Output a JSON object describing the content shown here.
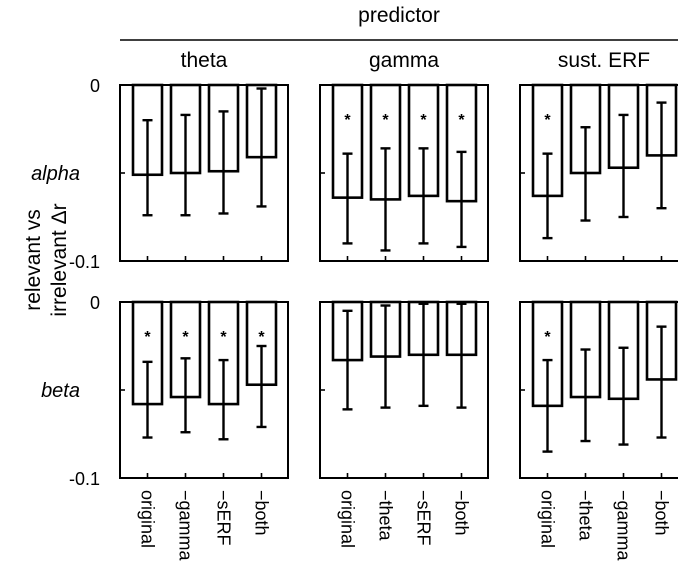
{
  "chart_data": {
    "type": "bar",
    "header": "predictor",
    "ylabel": [
      "relevant vs",
      "irrelevant Δr"
    ],
    "ylim": [
      -0.1,
      0
    ],
    "yticks": [
      {
        "value": 0,
        "label": "0"
      },
      {
        "value": -0.1,
        "label": "-0.1"
      }
    ],
    "significance_marker": "*",
    "rows": [
      {
        "label": "alpha"
      },
      {
        "label": "beta"
      }
    ],
    "columns": [
      {
        "predictor": "theta",
        "categories": [
          "original",
          "−gamma",
          "−sERF",
          "−both"
        ],
        "series": {
          "alpha": {
            "values": [
              -0.051,
              -0.05,
              -0.049,
              -0.041
            ],
            "err_low": [
              -0.074,
              -0.074,
              -0.073,
              -0.069
            ],
            "err_high": [
              -0.02,
              -0.017,
              -0.015,
              -0.002
            ],
            "significant": [
              false,
              false,
              false,
              false
            ]
          },
          "beta": {
            "values": [
              -0.058,
              -0.054,
              -0.058,
              -0.047
            ],
            "err_low": [
              -0.077,
              -0.074,
              -0.078,
              -0.071
            ],
            "err_high": [
              -0.034,
              -0.032,
              -0.033,
              -0.025
            ],
            "significant": [
              true,
              true,
              true,
              true
            ]
          }
        }
      },
      {
        "predictor": "gamma",
        "categories": [
          "original",
          "−theta",
          "−sERF",
          "−both"
        ],
        "series": {
          "alpha": {
            "values": [
              -0.064,
              -0.065,
              -0.063,
              -0.066
            ],
            "err_low": [
              -0.09,
              -0.094,
              -0.09,
              -0.092
            ],
            "err_high": [
              -0.039,
              -0.036,
              -0.036,
              -0.038
            ],
            "significant": [
              true,
              true,
              true,
              true
            ]
          },
          "beta": {
            "values": [
              -0.033,
              -0.031,
              -0.03,
              -0.03
            ],
            "err_low": [
              -0.061,
              -0.06,
              -0.059,
              -0.06
            ],
            "err_high": [
              -0.005,
              -0.002,
              -0.001,
              -0.001
            ],
            "significant": [
              false,
              false,
              false,
              false
            ]
          }
        }
      },
      {
        "predictor": "sust. ERF",
        "categories": [
          "original",
          "−theta",
          "−gamma",
          "−both"
        ],
        "series": {
          "alpha": {
            "values": [
              -0.063,
              -0.05,
              -0.047,
              -0.04
            ],
            "err_low": [
              -0.087,
              -0.077,
              -0.075,
              -0.07
            ],
            "err_high": [
              -0.039,
              -0.024,
              -0.017,
              -0.01
            ],
            "significant": [
              true,
              false,
              false,
              false
            ]
          },
          "beta": {
            "values": [
              -0.059,
              -0.054,
              -0.055,
              -0.044
            ],
            "err_low": [
              -0.085,
              -0.079,
              -0.081,
              -0.077
            ],
            "err_high": [
              -0.033,
              -0.027,
              -0.026,
              -0.014
            ],
            "significant": [
              true,
              false,
              false,
              false
            ]
          }
        }
      }
    ]
  }
}
